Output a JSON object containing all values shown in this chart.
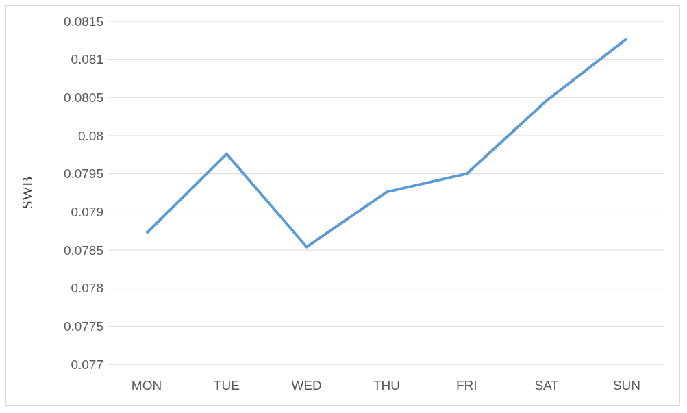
{
  "chart_data": {
    "type": "line",
    "ylabel": "SWB",
    "categories": [
      "MON",
      "TUE",
      "WED",
      "THU",
      "FRI",
      "SAT",
      "SUN"
    ],
    "series": [
      {
        "color": "#5b9bd5",
        "values": [
          0.07872,
          0.07976,
          0.07854,
          0.07926,
          0.0795,
          0.08046,
          0.08127
        ]
      }
    ],
    "ylim": [
      0.077,
      0.0815
    ],
    "yticks": [
      0.077,
      0.0775,
      0.078,
      0.0785,
      0.079,
      0.0795,
      0.08,
      0.0805,
      0.081,
      0.0815
    ],
    "grid": "y",
    "marker": "none",
    "line_style": "solid"
  }
}
